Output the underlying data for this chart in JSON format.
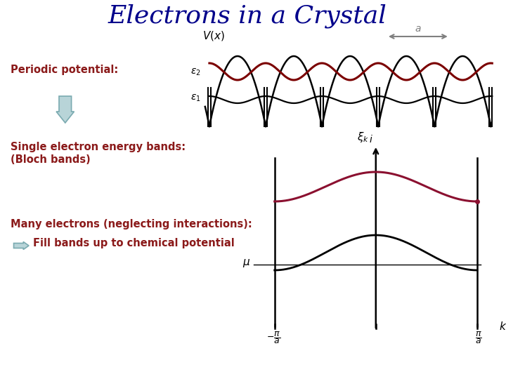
{
  "title": "Electrons in a Crystal",
  "title_color": "#00008B",
  "title_fontsize": 26,
  "bg_color": "#FFFFFF",
  "text_periodic": "Periodic potential:",
  "text_single": "Single electron energy bands:\n(Bloch bands)",
  "text_many": "Many electrons (neglecting interactions):",
  "text_fill": "Fill bands up to chemical potential",
  "label_color": "#8B1A1A",
  "fig_width": 7.2,
  "fig_height": 5.4,
  "dark_red": "#7B0000",
  "band_red": "#8B1030"
}
